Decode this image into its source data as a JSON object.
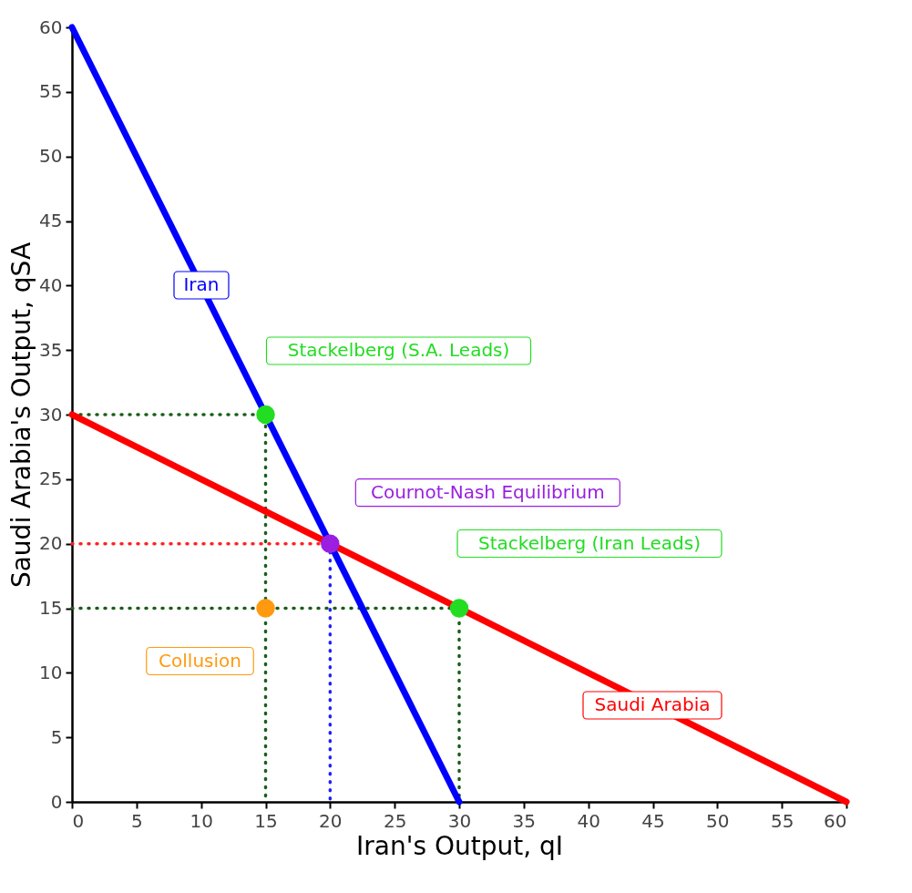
{
  "chart_data": {
    "type": "line",
    "xlabel": "Iran's Output, qI",
    "ylabel": "Saudi Arabia's Output, qSA",
    "xlim": [
      0,
      60
    ],
    "ylim": [
      0,
      60
    ],
    "xticks": [
      0,
      5,
      10,
      15,
      20,
      25,
      30,
      35,
      40,
      45,
      50,
      55,
      60
    ],
    "yticks": [
      0,
      5,
      10,
      15,
      20,
      25,
      30,
      35,
      40,
      45,
      50,
      55,
      60
    ],
    "grid": false,
    "series": [
      {
        "type": "line",
        "line_style": "dotted",
        "color": "#1a5e1a",
        "x": [
          0,
          15,
          15
        ],
        "values": [
          30,
          30,
          0
        ]
      },
      {
        "type": "line",
        "line_style": "dotted",
        "color": "#ff2020",
        "x": [
          0,
          20
        ],
        "values": [
          20,
          20
        ]
      },
      {
        "type": "line",
        "line_style": "dotted",
        "color": "#2020ff",
        "x": [
          20,
          20
        ],
        "values": [
          20,
          0
        ]
      },
      {
        "type": "line",
        "line_style": "dotted",
        "color": "#1a5e1a",
        "x": [
          0,
          30,
          30
        ],
        "values": [
          15,
          15,
          0
        ]
      },
      {
        "line_style": "solid",
        "name": "Iran",
        "color": "#0000ff",
        "x": [
          0,
          30
        ],
        "values": [
          60,
          0
        ]
      },
      {
        "line_style": "solid",
        "name": "Saudi Arabia",
        "color": "#ff0000",
        "x": [
          60,
          0
        ],
        "values": [
          0,
          30
        ]
      },
      {
        "type": "scatter",
        "marker": "circle",
        "name": "Stackelberg (S.A. Leads)",
        "color": "#22dd22",
        "x": [
          15
        ],
        "values": [
          30
        ]
      },
      {
        "type": "scatter",
        "marker": "circle",
        "name": "Cournot-Nash Equilibrium",
        "color": "#9a1fe0",
        "x": [
          20
        ],
        "values": [
          20
        ]
      },
      {
        "type": "scatter",
        "marker": "circle",
        "name": "Stackelberg (Iran Leads)",
        "color": "#22dd22",
        "x": [
          30
        ],
        "values": [
          15
        ]
      },
      {
        "type": "scatter",
        "marker": "circle",
        "name": "Collusion",
        "color": "#ff9a10",
        "x": [
          15
        ],
        "values": [
          15
        ]
      }
    ]
  }
}
